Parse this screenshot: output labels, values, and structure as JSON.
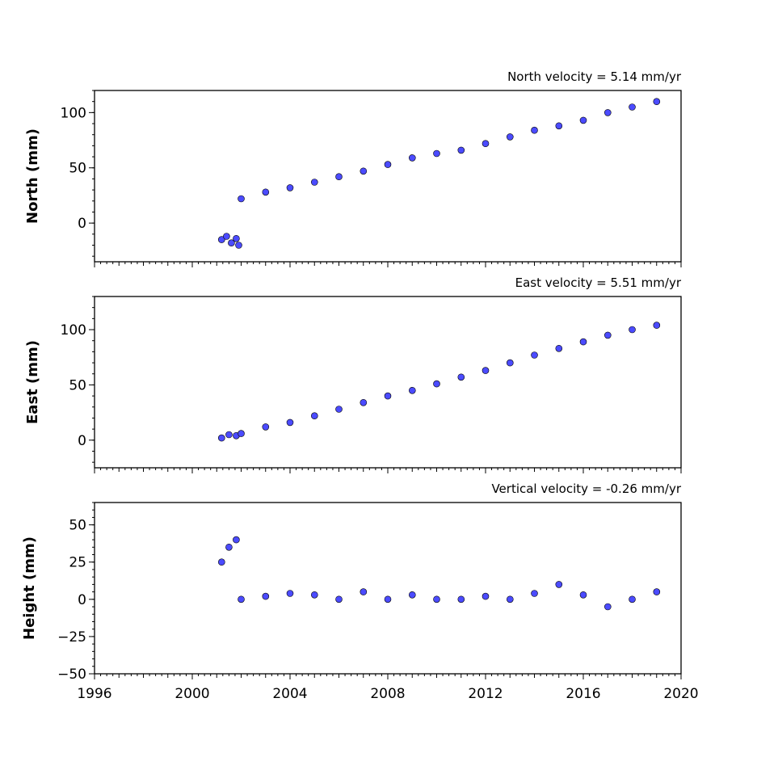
{
  "chart_data": [
    {
      "type": "scatter",
      "title": "North velocity = 5.14 mm/yr",
      "ylabel": "North (mm)",
      "ylim": [
        -35,
        120
      ],
      "yticks": [
        0,
        50,
        100
      ],
      "yticks_labels": [
        "0",
        "50",
        "100"
      ],
      "xlim": [
        1996,
        2020
      ],
      "x_tick_labels_shown": false,
      "color": "#4b4bff",
      "edge_color": "#000000",
      "series": [
        {
          "x": [
            2001.2,
            2001.4,
            2001.6,
            2001.8,
            2001.9,
            2002.0,
            2003,
            2004,
            2005,
            2006,
            2007,
            2008,
            2009,
            2010,
            2011,
            2012,
            2013,
            2014,
            2015,
            2016,
            2017,
            2018,
            2019
          ],
          "values": [
            -15,
            -12,
            -18,
            -14,
            -20,
            22,
            28,
            32,
            37,
            42,
            47,
            53,
            59,
            63,
            66,
            72,
            78,
            84,
            88,
            93,
            100,
            105,
            110
          ]
        }
      ]
    },
    {
      "type": "scatter",
      "title": "East velocity = 5.51 mm/yr",
      "ylabel": "East (mm)",
      "ylim": [
        -25,
        130
      ],
      "yticks": [
        0,
        50,
        100
      ],
      "yticks_labels": [
        "0",
        "50",
        "100"
      ],
      "xlim": [
        1996,
        2020
      ],
      "x_tick_labels_shown": false,
      "color": "#4b4bff",
      "edge_color": "#000000",
      "series": [
        {
          "x": [
            2001.2,
            2001.5,
            2001.8,
            2002.0,
            2003,
            2004,
            2005,
            2006,
            2007,
            2008,
            2009,
            2010,
            2011,
            2012,
            2013,
            2014,
            2015,
            2016,
            2017,
            2018,
            2019
          ],
          "values": [
            2,
            5,
            4,
            6,
            12,
            16,
            22,
            28,
            34,
            40,
            45,
            51,
            57,
            63,
            70,
            77,
            83,
            89,
            95,
            100,
            104
          ]
        }
      ]
    },
    {
      "type": "scatter",
      "title": "Vertical velocity = -0.26 mm/yr",
      "ylabel": "Height (mm)",
      "ylim": [
        -50,
        65
      ],
      "yticks": [
        -50,
        -25,
        0,
        25,
        50
      ],
      "yticks_labels": [
        "−50",
        "−25",
        "0",
        "25",
        "50"
      ],
      "xlim": [
        1996,
        2020
      ],
      "xticks": [
        1996,
        2000,
        2004,
        2008,
        2012,
        2016,
        2020
      ],
      "xticks_labels": [
        "1996",
        "2000",
        "2004",
        "2008",
        "2012",
        "2016",
        "2020"
      ],
      "color": "#4b4bff",
      "edge_color": "#000000",
      "series": [
        {
          "x": [
            2001.2,
            2001.5,
            2001.8,
            2002.0,
            2003,
            2004,
            2005,
            2006,
            2007,
            2008,
            2009,
            2010,
            2011,
            2012,
            2013,
            2014,
            2015,
            2016,
            2017,
            2018,
            2019
          ],
          "values": [
            25,
            35,
            40,
            0,
            2,
            4,
            3,
            0,
            5,
            0,
            3,
            0,
            0,
            2,
            0,
            4,
            10,
            3,
            -5,
            0,
            5
          ]
        }
      ]
    }
  ]
}
